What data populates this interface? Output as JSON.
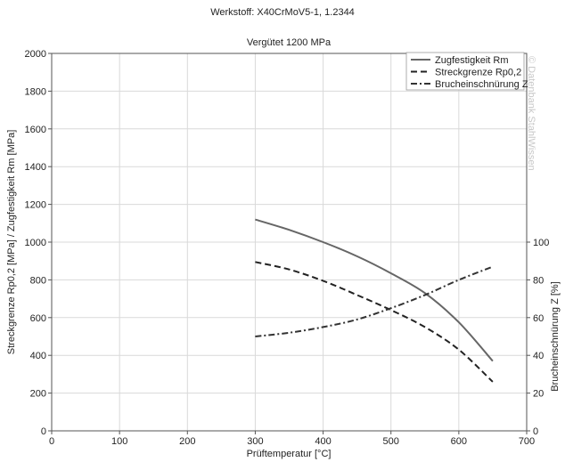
{
  "chart_data": {
    "type": "line",
    "title": "Werkstoff: X40CrMoV5-1, 1.2344",
    "subtitle": "Vergütet 1200 MPa",
    "xlabel": "Prüftemperatur [°C]",
    "ylabel": "Streckgrenze Rp0,2 [MPa] / Zugfestigkeit Rm [MPa]",
    "y2label": "Brucheinschnürung Z [%]",
    "watermark": "© Datenbank StahlWissen",
    "xlim": [
      0,
      700
    ],
    "ylim": [
      0,
      2000
    ],
    "y2lim": [
      0,
      200
    ],
    "xticks": [
      0,
      100,
      200,
      300,
      400,
      500,
      600,
      700
    ],
    "yticks": [
      0,
      200,
      400,
      600,
      800,
      1000,
      1200,
      1400,
      1600,
      1800,
      2000
    ],
    "y2ticks": [
      0,
      20,
      40,
      60,
      80,
      100
    ],
    "grid": true,
    "legend_position": "top-right",
    "colors": {
      "rm": "#666666",
      "rp": "#222222",
      "z": "#333333"
    },
    "series": [
      {
        "name": "Zugfestigkeit Rm",
        "axis": "left",
        "dash": "solid",
        "x": [
          300,
          350,
          400,
          450,
          500,
          550,
          600,
          650
        ],
        "y": [
          1120,
          1065,
          1000,
          925,
          835,
          730,
          575,
          370
        ]
      },
      {
        "name": "Streckgrenze Rp0,2",
        "axis": "left",
        "dash": "dashed",
        "x": [
          300,
          350,
          400,
          450,
          500,
          550,
          600,
          650
        ],
        "y": [
          895,
          855,
          795,
          720,
          640,
          550,
          430,
          260
        ]
      },
      {
        "name": "Brucheinschnürung Z",
        "axis": "right",
        "dash": "dashdot",
        "x": [
          300,
          350,
          400,
          450,
          500,
          550,
          600,
          650
        ],
        "y": [
          50,
          52,
          55,
          59,
          65,
          72,
          80,
          87
        ]
      }
    ]
  }
}
